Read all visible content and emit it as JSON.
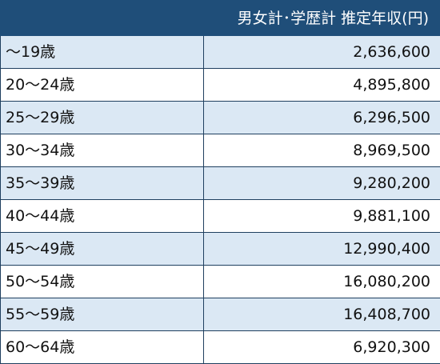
{
  "table": {
    "headers": [
      "",
      "男女計･学歴計 推定年収(円)"
    ],
    "rows": [
      {
        "age": "～19歳",
        "income": "2,636,600"
      },
      {
        "age": "20～24歳",
        "income": "4,895,800"
      },
      {
        "age": "25～29歳",
        "income": "6,296,500"
      },
      {
        "age": "30～34歳",
        "income": "8,969,500"
      },
      {
        "age": "35～39歳",
        "income": "9,280,200"
      },
      {
        "age": "40～44歳",
        "income": "9,881,100"
      },
      {
        "age": "45～49歳",
        "income": "12,990,400"
      },
      {
        "age": "50～54歳",
        "income": "16,080,200"
      },
      {
        "age": "55～59歳",
        "income": "16,408,700"
      },
      {
        "age": "60～64歳",
        "income": "6,920,300"
      }
    ]
  },
  "colors": {
    "header_bg": "#1f4e79",
    "header_text": "#ffffff",
    "stripe_bg": "#dbe8f4",
    "border": "#1f3f5f"
  }
}
